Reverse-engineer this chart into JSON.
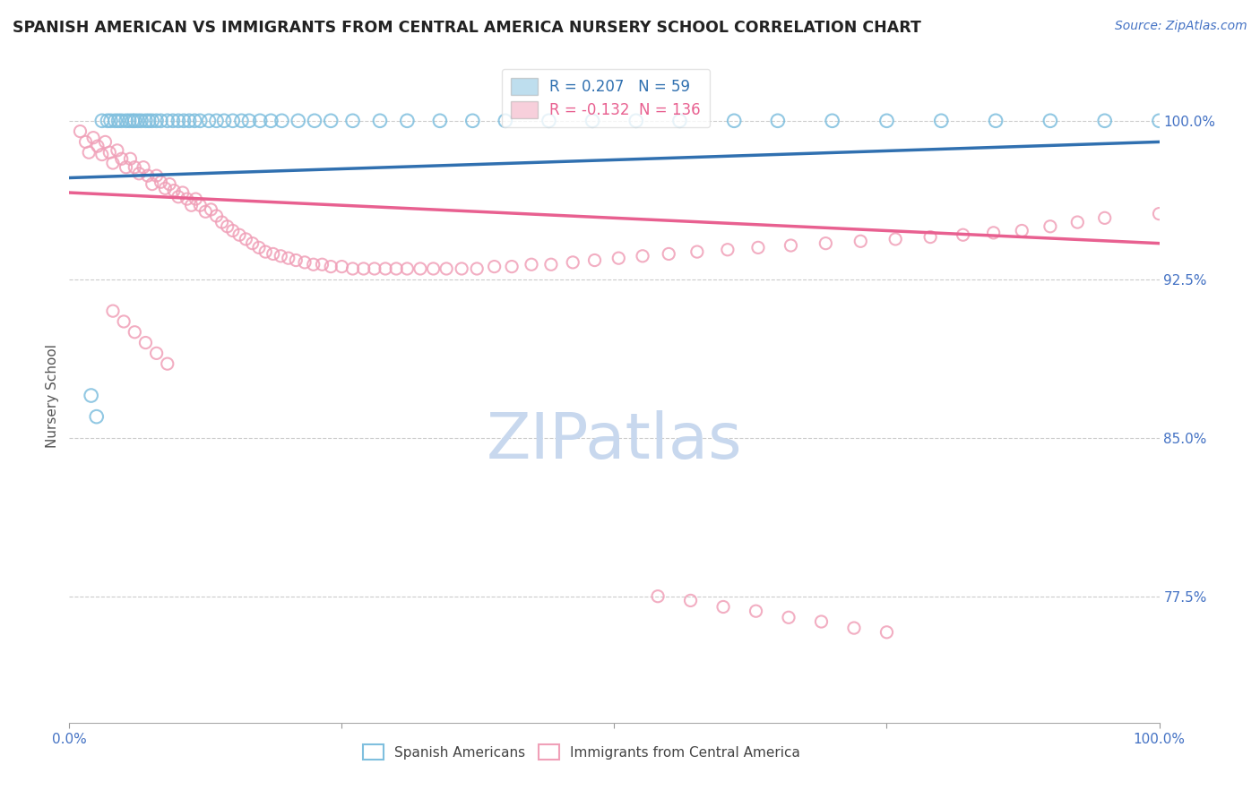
{
  "title": "SPANISH AMERICAN VS IMMIGRANTS FROM CENTRAL AMERICA NURSERY SCHOOL CORRELATION CHART",
  "source": "Source: ZipAtlas.com",
  "ylabel": "Nursery School",
  "xlim": [
    0.0,
    1.0
  ],
  "ylim": [
    0.715,
    1.025
  ],
  "yticks": [
    0.775,
    0.85,
    0.925,
    1.0
  ],
  "ytick_labels": [
    "77.5%",
    "85.0%",
    "92.5%",
    "100.0%"
  ],
  "xticks": [
    0.0,
    0.25,
    0.5,
    0.75,
    1.0
  ],
  "xtick_labels": [
    "0.0%",
    "",
    "",
    "",
    "100.0%"
  ],
  "blue_R": 0.207,
  "blue_N": 59,
  "pink_R": -0.132,
  "pink_N": 136,
  "blue_color": "#7fbfde",
  "pink_color": "#f0a0b8",
  "blue_line_color": "#3070b0",
  "pink_line_color": "#e86090",
  "title_color": "#222222",
  "tick_color": "#4472c4",
  "grid_color": "#cccccc",
  "watermark_color": "#c8d8ee",
  "background_color": "#ffffff",
  "blue_scatter_x": [
    0.02,
    0.025,
    0.03,
    0.035,
    0.038,
    0.042,
    0.045,
    0.048,
    0.052,
    0.055,
    0.058,
    0.06,
    0.063,
    0.066,
    0.07,
    0.073,
    0.076,
    0.08,
    0.084,
    0.09,
    0.095,
    0.1,
    0.105,
    0.11,
    0.115,
    0.12,
    0.128,
    0.135,
    0.142,
    0.15,
    0.158,
    0.165,
    0.175,
    0.185,
    0.195,
    0.21,
    0.225,
    0.24,
    0.26,
    0.285,
    0.31,
    0.34,
    0.37,
    0.4,
    0.44,
    0.48,
    0.52,
    0.56,
    0.61,
    0.65,
    0.7,
    0.75,
    0.8,
    0.85,
    0.9,
    0.95,
    1.0
  ],
  "blue_scatter_y": [
    0.87,
    0.86,
    1.0,
    1.0,
    1.0,
    1.0,
    1.0,
    1.0,
    1.0,
    1.0,
    1.0,
    1.0,
    1.0,
    1.0,
    1.0,
    1.0,
    1.0,
    1.0,
    1.0,
    1.0,
    1.0,
    1.0,
    1.0,
    1.0,
    1.0,
    1.0,
    1.0,
    1.0,
    1.0,
    1.0,
    1.0,
    1.0,
    1.0,
    1.0,
    1.0,
    1.0,
    1.0,
    1.0,
    1.0,
    1.0,
    1.0,
    1.0,
    1.0,
    1.0,
    1.0,
    1.0,
    1.0,
    1.0,
    1.0,
    1.0,
    1.0,
    1.0,
    1.0,
    1.0,
    1.0,
    1.0,
    1.0
  ],
  "pink_scatter_x": [
    0.01,
    0.015,
    0.018,
    0.022,
    0.026,
    0.03,
    0.033,
    0.037,
    0.04,
    0.044,
    0.048,
    0.052,
    0.056,
    0.06,
    0.064,
    0.068,
    0.072,
    0.076,
    0.08,
    0.084,
    0.088,
    0.092,
    0.096,
    0.1,
    0.104,
    0.108,
    0.112,
    0.116,
    0.12,
    0.125,
    0.13,
    0.135,
    0.14,
    0.145,
    0.15,
    0.156,
    0.162,
    0.168,
    0.174,
    0.18,
    0.187,
    0.194,
    0.201,
    0.208,
    0.216,
    0.224,
    0.232,
    0.24,
    0.25,
    0.26,
    0.27,
    0.28,
    0.29,
    0.3,
    0.31,
    0.322,
    0.334,
    0.346,
    0.36,
    0.374,
    0.39,
    0.406,
    0.424,
    0.442,
    0.462,
    0.482,
    0.504,
    0.526,
    0.55,
    0.576,
    0.604,
    0.632,
    0.662,
    0.694,
    0.726,
    0.758,
    0.79,
    0.82,
    0.848,
    0.874,
    0.9,
    0.925,
    0.95,
    1.0,
    0.04,
    0.05,
    0.06,
    0.07,
    0.08,
    0.09,
    0.54,
    0.57,
    0.6,
    0.63,
    0.66,
    0.69,
    0.72,
    0.75
  ],
  "pink_scatter_y": [
    0.995,
    0.99,
    0.985,
    0.992,
    0.988,
    0.984,
    0.99,
    0.985,
    0.98,
    0.986,
    0.982,
    0.978,
    0.982,
    0.978,
    0.975,
    0.978,
    0.974,
    0.97,
    0.974,
    0.971,
    0.968,
    0.97,
    0.967,
    0.964,
    0.966,
    0.963,
    0.96,
    0.963,
    0.96,
    0.957,
    0.958,
    0.955,
    0.952,
    0.95,
    0.948,
    0.946,
    0.944,
    0.942,
    0.94,
    0.938,
    0.937,
    0.936,
    0.935,
    0.934,
    0.933,
    0.932,
    0.932,
    0.931,
    0.931,
    0.93,
    0.93,
    0.93,
    0.93,
    0.93,
    0.93,
    0.93,
    0.93,
    0.93,
    0.93,
    0.93,
    0.931,
    0.931,
    0.932,
    0.932,
    0.933,
    0.934,
    0.935,
    0.936,
    0.937,
    0.938,
    0.939,
    0.94,
    0.941,
    0.942,
    0.943,
    0.944,
    0.945,
    0.946,
    0.947,
    0.948,
    0.95,
    0.952,
    0.954,
    0.956,
    0.91,
    0.905,
    0.9,
    0.895,
    0.89,
    0.885,
    0.775,
    0.773,
    0.77,
    0.768,
    0.765,
    0.763,
    0.76,
    0.758
  ],
  "blue_trend_start_y": 0.973,
  "blue_trend_end_y": 0.99,
  "pink_trend_start_y": 0.966,
  "pink_trend_end_y": 0.942
}
